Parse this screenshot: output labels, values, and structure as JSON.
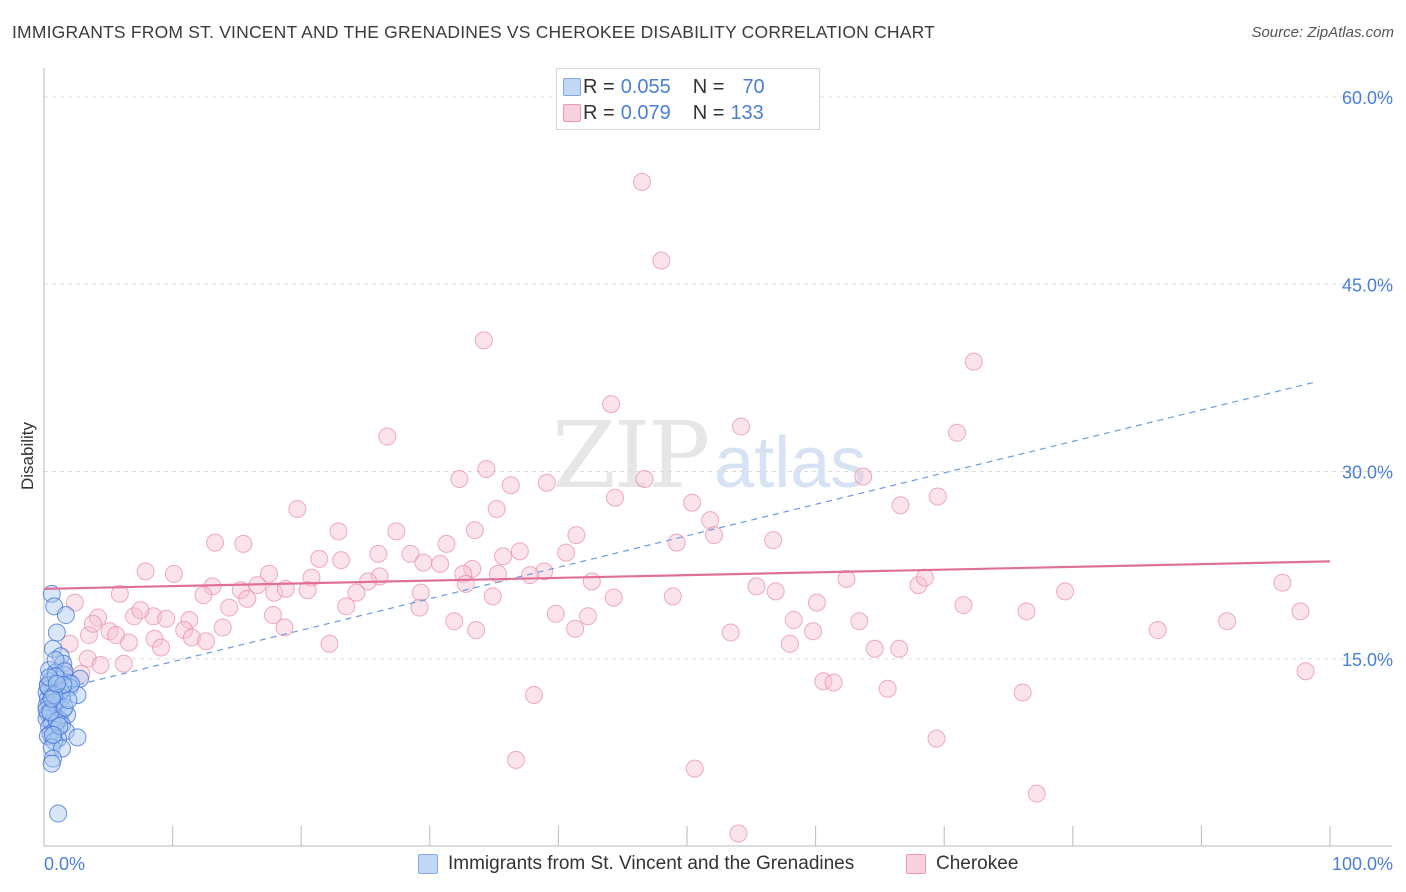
{
  "title": "IMMIGRANTS FROM ST. VINCENT AND THE GRENADINES VS CHEROKEE DISABILITY CORRELATION CHART",
  "source": "Source: ZipAtlas.com",
  "watermark": {
    "zip": "ZIP",
    "atlas": "atlas"
  },
  "stats": {
    "r_label": "R =",
    "n_label": "N =",
    "blue": {
      "r": "0.055",
      "n": "70"
    },
    "pink": {
      "r": "0.079",
      "n": "133"
    }
  },
  "colors": {
    "blue_fill": "#a8c8f0",
    "blue_stroke": "#3d6fd6",
    "blue_line": "#6a9be0",
    "pink_fill": "#f7c0d2",
    "pink_stroke": "#e88aa8",
    "pink_line": "#e0709a",
    "tick_label": "#4a7fd4",
    "grid": "#dddddd"
  },
  "chart_data": {
    "type": "scatter",
    "title": "IMMIGRANTS FROM ST. VINCENT AND THE GRENADINES VS CHEROKEE DISABILITY CORRELATION CHART",
    "xlabel": "",
    "ylabel": "Disability",
    "xlim": [
      0,
      100
    ],
    "ylim": [
      0,
      60
    ],
    "y_ticks": [
      15,
      30,
      45,
      60
    ],
    "y_tick_labels": [
      "15.0%",
      "30.0%",
      "45.0%",
      "60.0%"
    ],
    "x_tick_labels": [
      "0.0%",
      "100.0%"
    ],
    "grid": true,
    "legend_position": "bottom",
    "series": [
      {
        "name": "Immigrants from St. Vincent and the Grenadines",
        "color": "#a8c8f0",
        "trend": {
          "x": [
            1.0,
            99.0
          ],
          "y": [
            12.5,
            37.2
          ],
          "style": "dashed"
        },
        "points": [
          [
            0.6,
            20.2
          ],
          [
            0.8,
            19.2
          ],
          [
            1.0,
            17.1
          ],
          [
            1.7,
            18.5
          ],
          [
            0.7,
            15.8
          ],
          [
            1.3,
            15.2
          ],
          [
            1.5,
            14.6
          ],
          [
            0.4,
            14.1
          ],
          [
            0.9,
            13.9
          ],
          [
            1.6,
            13.7
          ],
          [
            2.8,
            13.4
          ],
          [
            1.9,
            13.1
          ],
          [
            0.5,
            13.2
          ],
          [
            0.3,
            12.9
          ],
          [
            1.2,
            13.3
          ],
          [
            2.0,
            12.7
          ],
          [
            0.7,
            12.5
          ],
          [
            0.2,
            12.3
          ],
          [
            1.0,
            12.2
          ],
          [
            2.6,
            12.1
          ],
          [
            0.6,
            12.0
          ],
          [
            1.4,
            11.9
          ],
          [
            0.3,
            11.8
          ],
          [
            0.9,
            11.6
          ],
          [
            0.4,
            11.4
          ],
          [
            1.1,
            11.3
          ],
          [
            0.2,
            11.2
          ],
          [
            0.7,
            11.0
          ],
          [
            1.5,
            10.9
          ],
          [
            0.5,
            10.8
          ],
          [
            0.3,
            10.6
          ],
          [
            1.8,
            10.5
          ],
          [
            0.8,
            10.4
          ],
          [
            0.2,
            10.2
          ],
          [
            1.2,
            10.1
          ],
          [
            0.6,
            9.9
          ],
          [
            1.4,
            9.7
          ],
          [
            0.4,
            9.5
          ],
          [
            0.9,
            9.3
          ],
          [
            0.5,
            9.0
          ],
          [
            1.7,
            9.2
          ],
          [
            0.3,
            8.8
          ],
          [
            1.1,
            8.6
          ],
          [
            2.6,
            8.7
          ],
          [
            0.8,
            8.4
          ],
          [
            0.6,
            7.9
          ],
          [
            1.4,
            7.8
          ],
          [
            0.7,
            7.0
          ],
          [
            0.6,
            6.6
          ],
          [
            1.1,
            2.6
          ],
          [
            0.9,
            14.9
          ],
          [
            1.6,
            14.0
          ],
          [
            2.1,
            13.0
          ],
          [
            0.4,
            12.6
          ],
          [
            1.3,
            12.4
          ],
          [
            0.8,
            11.5
          ],
          [
            0.2,
            10.9
          ],
          [
            1.0,
            10.0
          ],
          [
            0.5,
            10.7
          ],
          [
            1.6,
            11.1
          ],
          [
            0.3,
            12.8
          ],
          [
            0.9,
            13.6
          ],
          [
            1.2,
            9.6
          ],
          [
            0.7,
            8.9
          ],
          [
            1.9,
            11.7
          ],
          [
            0.4,
            13.5
          ],
          [
            1.5,
            12.9
          ],
          [
            0.8,
            12.1
          ],
          [
            0.6,
            11.8
          ],
          [
            1.0,
            13.0
          ]
        ]
      },
      {
        "name": "Cherokee",
        "color": "#f7c0d2",
        "trend": {
          "x": [
            0,
            100
          ],
          "y": [
            20.6,
            22.8
          ],
          "style": "solid"
        },
        "points": [
          [
            46.5,
            53.2
          ],
          [
            48.0,
            46.9
          ],
          [
            34.2,
            40.5
          ],
          [
            72.3,
            38.8
          ],
          [
            44.1,
            35.4
          ],
          [
            54.2,
            33.6
          ],
          [
            71.0,
            33.1
          ],
          [
            26.7,
            32.8
          ],
          [
            34.4,
            30.2
          ],
          [
            32.3,
            29.4
          ],
          [
            46.7,
            29.4
          ],
          [
            63.7,
            29.6
          ],
          [
            39.1,
            29.1
          ],
          [
            36.3,
            28.9
          ],
          [
            44.4,
            27.9
          ],
          [
            69.5,
            28.0
          ],
          [
            50.4,
            27.5
          ],
          [
            66.6,
            27.3
          ],
          [
            19.7,
            27.0
          ],
          [
            35.2,
            27.0
          ],
          [
            51.8,
            26.1
          ],
          [
            33.5,
            25.3
          ],
          [
            22.9,
            25.2
          ],
          [
            27.4,
            25.2
          ],
          [
            41.4,
            24.9
          ],
          [
            52.1,
            24.9
          ],
          [
            56.7,
            24.5
          ],
          [
            13.3,
            24.3
          ],
          [
            15.5,
            24.2
          ],
          [
            31.3,
            24.2
          ],
          [
            49.2,
            24.3
          ],
          [
            37.0,
            23.6
          ],
          [
            40.6,
            23.5
          ],
          [
            28.5,
            23.4
          ],
          [
            26.0,
            23.4
          ],
          [
            21.4,
            23.0
          ],
          [
            35.7,
            23.2
          ],
          [
            23.1,
            22.9
          ],
          [
            33.3,
            22.2
          ],
          [
            29.5,
            22.7
          ],
          [
            30.8,
            22.6
          ],
          [
            38.9,
            22.0
          ],
          [
            7.9,
            22.0
          ],
          [
            10.1,
            21.8
          ],
          [
            26.1,
            21.6
          ],
          [
            17.5,
            21.8
          ],
          [
            32.6,
            21.8
          ],
          [
            20.8,
            21.5
          ],
          [
            35.3,
            21.8
          ],
          [
            42.6,
            21.2
          ],
          [
            32.8,
            21.0
          ],
          [
            62.4,
            21.4
          ],
          [
            68.0,
            20.9
          ],
          [
            68.5,
            21.5
          ],
          [
            56.9,
            20.4
          ],
          [
            13.1,
            20.8
          ],
          [
            16.6,
            20.9
          ],
          [
            17.9,
            20.3
          ],
          [
            15.3,
            20.5
          ],
          [
            18.8,
            20.6
          ],
          [
            20.5,
            20.5
          ],
          [
            5.9,
            20.2
          ],
          [
            12.4,
            20.1
          ],
          [
            24.3,
            20.3
          ],
          [
            34.9,
            20.0
          ],
          [
            29.3,
            20.3
          ],
          [
            44.3,
            19.9
          ],
          [
            79.4,
            20.4
          ],
          [
            96.3,
            21.1
          ],
          [
            2.4,
            19.5
          ],
          [
            14.4,
            19.1
          ],
          [
            23.5,
            19.2
          ],
          [
            29.2,
            19.1
          ],
          [
            71.5,
            19.3
          ],
          [
            76.4,
            18.8
          ],
          [
            39.8,
            18.6
          ],
          [
            42.3,
            18.4
          ],
          [
            4.2,
            18.3
          ],
          [
            7.0,
            18.4
          ],
          [
            8.5,
            18.4
          ],
          [
            9.5,
            18.2
          ],
          [
            11.3,
            18.1
          ],
          [
            17.8,
            18.5
          ],
          [
            31.9,
            18.0
          ],
          [
            58.3,
            18.1
          ],
          [
            63.4,
            18.0
          ],
          [
            92.0,
            18.0
          ],
          [
            97.7,
            18.8
          ],
          [
            5.1,
            17.2
          ],
          [
            10.9,
            17.3
          ],
          [
            13.9,
            17.5
          ],
          [
            18.7,
            17.5
          ],
          [
            33.6,
            17.3
          ],
          [
            41.3,
            17.4
          ],
          [
            53.4,
            17.1
          ],
          [
            59.8,
            17.2
          ],
          [
            86.6,
            17.3
          ],
          [
            3.5,
            16.9
          ],
          [
            6.6,
            16.3
          ],
          [
            8.6,
            16.6
          ],
          [
            11.5,
            16.7
          ],
          [
            12.6,
            16.4
          ],
          [
            22.2,
            16.2
          ],
          [
            58.0,
            16.2
          ],
          [
            64.6,
            15.8
          ],
          [
            66.5,
            15.8
          ],
          [
            2.0,
            16.2
          ],
          [
            3.4,
            15.0
          ],
          [
            6.2,
            14.6
          ],
          [
            60.6,
            13.2
          ],
          [
            61.4,
            13.1
          ],
          [
            65.6,
            12.6
          ],
          [
            76.1,
            12.3
          ],
          [
            38.1,
            12.1
          ],
          [
            98.1,
            14.0
          ],
          [
            69.4,
            8.6
          ],
          [
            36.7,
            6.9
          ],
          [
            50.6,
            6.2
          ],
          [
            77.2,
            4.2
          ],
          [
            54.0,
            1.0
          ],
          [
            4.4,
            14.5
          ],
          [
            2.9,
            13.8
          ],
          [
            5.6,
            16.9
          ],
          [
            9.1,
            15.9
          ],
          [
            15.8,
            19.8
          ],
          [
            25.2,
            21.2
          ],
          [
            37.8,
            21.7
          ],
          [
            48.9,
            20.0
          ],
          [
            55.4,
            20.8
          ],
          [
            60.1,
            19.5
          ],
          [
            3.8,
            17.8
          ],
          [
            1.5,
            14.2
          ],
          [
            7.5,
            18.9
          ]
        ]
      }
    ]
  },
  "legend": {
    "blue_label": "Immigrants from St. Vincent and the Grenadines",
    "pink_label": "Cherokee"
  }
}
